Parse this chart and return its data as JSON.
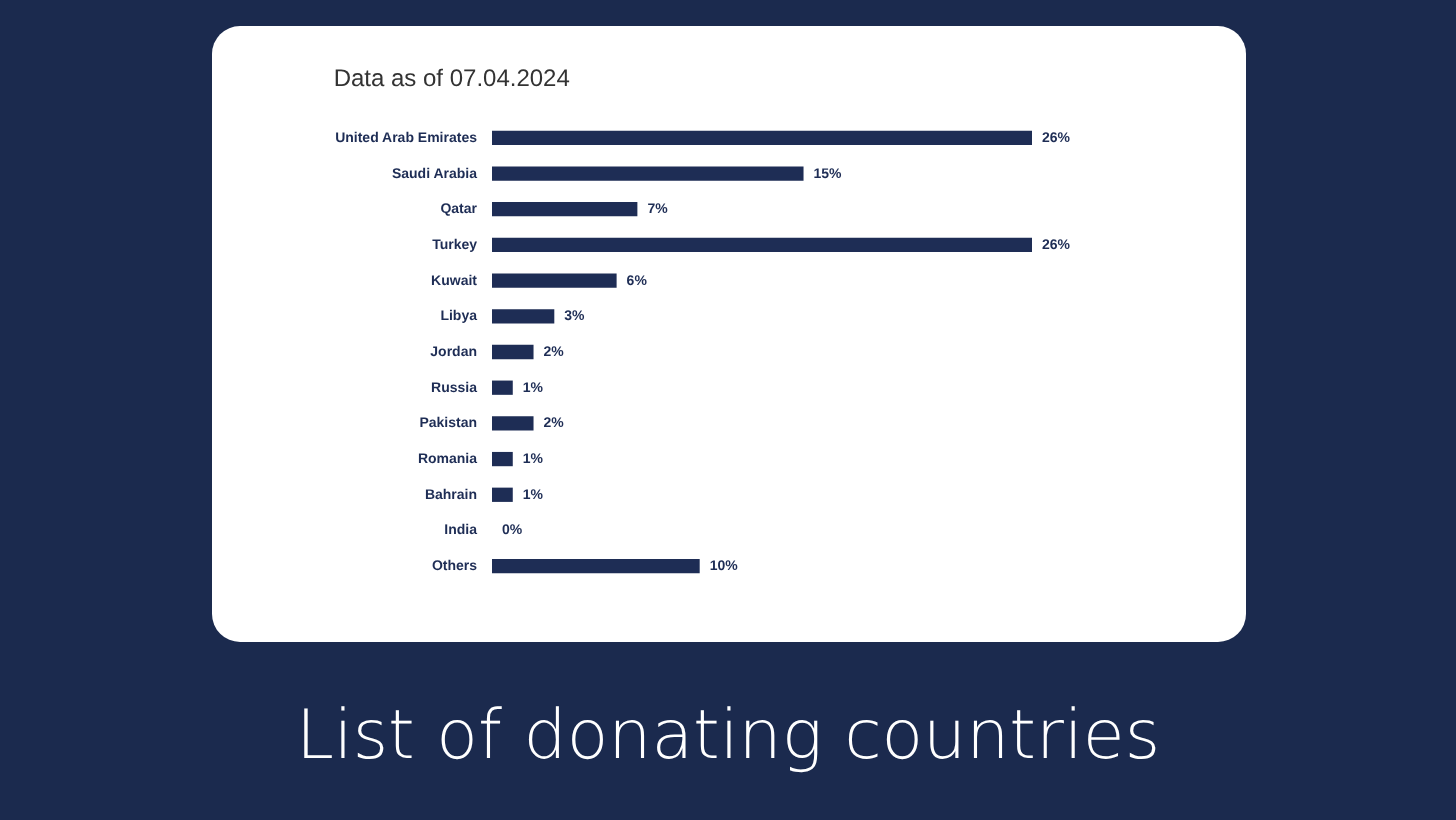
{
  "chart_data": {
    "type": "bar",
    "orientation": "horizontal",
    "title": "List of donating countries",
    "subtitle": "Data as of 07.04.2024",
    "categories": [
      "United Arab Emirates",
      "Saudi Arabia",
      "Qatar",
      "Turkey",
      "Kuwait",
      "Libya",
      "Jordan",
      "Russia",
      "Pakistan",
      "Romania",
      "Bahrain",
      "India",
      "Others"
    ],
    "values": [
      26,
      15,
      7,
      26,
      6,
      3,
      2,
      1,
      2,
      1,
      1,
      0,
      10
    ],
    "value_labels": [
      "26%",
      "15%",
      "7%",
      "26%",
      "6%",
      "3%",
      "2%",
      "1%",
      "2%",
      "1%",
      "1%",
      "0%",
      "10%"
    ],
    "color": "#1e2d55",
    "grid": false
  }
}
